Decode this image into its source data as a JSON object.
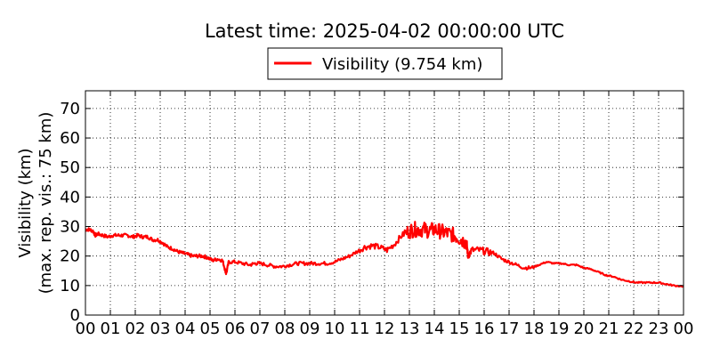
{
  "chart_data": {
    "type": "line",
    "title": "Latest time: 2025-04-02 00:00:00 UTC",
    "ylabel_line1": "Visibility (km)",
    "ylabel_line2": "(max. rep. vis.: 75 km)",
    "xlabel": "",
    "ylim": [
      0,
      76
    ],
    "xlim": [
      0,
      24
    ],
    "y_ticks": [
      0,
      10,
      20,
      30,
      40,
      50,
      60,
      70
    ],
    "x_tick_labels": [
      "00",
      "01",
      "02",
      "03",
      "04",
      "05",
      "06",
      "07",
      "08",
      "09",
      "10",
      "11",
      "12",
      "13",
      "14",
      "15",
      "16",
      "17",
      "18",
      "19",
      "20",
      "21",
      "22",
      "23",
      "00"
    ],
    "grid": true,
    "legend_position": "top-center",
    "series": [
      {
        "name": "Visibility (9.754 km)",
        "color": "#ff0000",
        "x": [
          0.0,
          0.15,
          0.3,
          0.4,
          0.5,
          0.7,
          0.9,
          1.1,
          1.3,
          1.5,
          1.7,
          1.9,
          2.1,
          2.3,
          2.5,
          2.7,
          2.9,
          3.1,
          3.3,
          3.5,
          3.7,
          3.9,
          4.1,
          4.3,
          4.5,
          4.7,
          4.9,
          5.1,
          5.3,
          5.5,
          5.6,
          5.65,
          5.75,
          6.0,
          6.3,
          6.6,
          6.8,
          7.0,
          7.3,
          7.6,
          7.9,
          8.2,
          8.5,
          8.8,
          9.1,
          9.4,
          9.7,
          10.0,
          10.3,
          10.6,
          10.9,
          11.2,
          11.5,
          11.8,
          12.1,
          12.4,
          12.7,
          13.0,
          13.2,
          13.4,
          13.6,
          13.8,
          14.0,
          14.2,
          14.4,
          14.6,
          14.8,
          15.0,
          15.2,
          15.3,
          15.35,
          15.5,
          15.8,
          16.1,
          16.4,
          16.7,
          17.0,
          17.3,
          17.6,
          17.9,
          18.2,
          18.5,
          18.8,
          19.1,
          19.4,
          19.7,
          20.0,
          20.3,
          20.6,
          20.9,
          21.2,
          21.5,
          21.8,
          22.1,
          22.4,
          22.7,
          23.0,
          23.3,
          23.6,
          24.0
        ],
        "values": [
          29,
          29,
          28.5,
          27,
          27.5,
          27,
          26.5,
          27,
          27,
          27,
          27,
          26.5,
          27,
          26.5,
          26.5,
          25.5,
          25.5,
          24.5,
          23,
          22.5,
          21.5,
          21,
          20.5,
          20,
          20,
          20,
          19.5,
          18.5,
          19,
          18.5,
          15.5,
          14,
          18,
          18,
          17.5,
          17,
          17.5,
          17.5,
          17,
          16.5,
          16.5,
          17,
          17.5,
          17.5,
          17.5,
          17.5,
          17.5,
          18,
          19,
          20,
          21.5,
          23,
          23.5,
          23,
          22,
          24,
          27,
          28.5,
          29,
          29,
          29,
          28.5,
          29,
          28.5,
          28,
          27.5,
          27,
          26,
          25,
          24.5,
          20,
          22,
          22,
          21.5,
          21,
          19,
          18,
          17,
          16,
          16,
          17,
          18,
          17.5,
          17.5,
          17,
          17,
          16,
          15.5,
          14.5,
          13.5,
          13,
          12,
          11.5,
          11,
          11,
          11,
          11,
          10.5,
          10,
          9.754
        ]
      }
    ]
  }
}
